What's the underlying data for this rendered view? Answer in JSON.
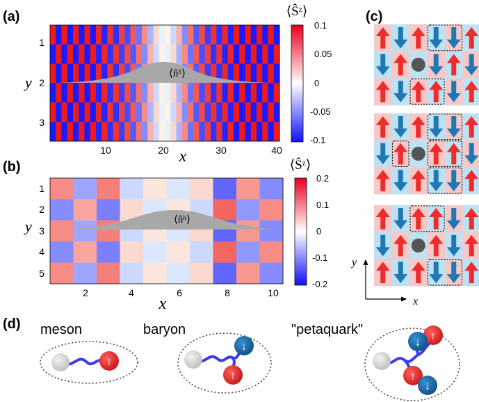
{
  "panels": {
    "a": {
      "label": "(a)",
      "y_label": "y",
      "x_label": "x",
      "y_ticks": [
        "1",
        "2",
        "3"
      ],
      "x_ticks": [
        "10",
        "20",
        "30",
        "40"
      ],
      "colorbar_title": "⟨Ŝᶻ⟩",
      "colorbar_ticks": [
        "0.1",
        "0.05",
        "0",
        "-0.05",
        "-0.1"
      ],
      "overlay_label": "⟨n̂ʰ⟩"
    },
    "b": {
      "label": "(b)",
      "y_label": "y",
      "x_label": "x",
      "y_ticks": [
        "1",
        "2",
        "3",
        "4",
        "5"
      ],
      "x_ticks": [
        "2",
        "4",
        "6",
        "8",
        "10"
      ],
      "colorbar_title": "⟨Ŝᶻ⟩",
      "colorbar_ticks": [
        "0.2",
        "0.1",
        "0",
        "-0.1",
        "-0.2"
      ],
      "overlay_label": "⟨n̂ʰ⟩"
    },
    "c": {
      "label": "(c)",
      "axis_y": "y",
      "axis_x": "x"
    },
    "d": {
      "label": "(d)",
      "meson": "meson",
      "baryon": "baryon",
      "petaquark": "\"petaquark\"",
      "arrow_up": "↑",
      "arrow_down": "↓"
    }
  },
  "chart_data": [
    {
      "type": "heatmap",
      "panel": "a",
      "x_range": [
        1,
        40
      ],
      "y_range": [
        1,
        3
      ],
      "value_range": [
        -0.1,
        0.1
      ],
      "columns": 40,
      "rows": 3,
      "column_amplitude": [
        0.09,
        0.09,
        0.09,
        0.09,
        0.09,
        0.09,
        0.09,
        0.09,
        0.085,
        0.085,
        0.08,
        0.08,
        0.075,
        0.07,
        0.065,
        0.055,
        0.045,
        0.03,
        0.015,
        0.005,
        0.005,
        0.015,
        0.03,
        0.045,
        0.055,
        0.065,
        0.07,
        0.075,
        0.08,
        0.08,
        0.085,
        0.085,
        0.09,
        0.09,
        0.09,
        0.09,
        0.09,
        0.09,
        0.09,
        0.09
      ],
      "pattern": "checkerboard"
    },
    {
      "type": "heatmap",
      "panel": "b",
      "x_range": [
        1,
        10
      ],
      "y_range": [
        1,
        5
      ],
      "value_range": [
        -0.2,
        0.2
      ],
      "columns": 10,
      "rows": 5,
      "column_amplitude": [
        0.09,
        0.07,
        0.1,
        0.03,
        0.02,
        0.02,
        0.03,
        0.12,
        0.08,
        0.09
      ],
      "pattern": "checkerboard"
    }
  ],
  "colors": {
    "spin_up": "#ef2b2b",
    "spin_down": "#1f78b4",
    "tile_red": "#f6c9c9",
    "tile_blue": "#bfe1f2",
    "hole": "#555555",
    "overlay": "#a8a8a8",
    "ball_gray": "#d8d8d8",
    "string": "#3a3af0"
  }
}
